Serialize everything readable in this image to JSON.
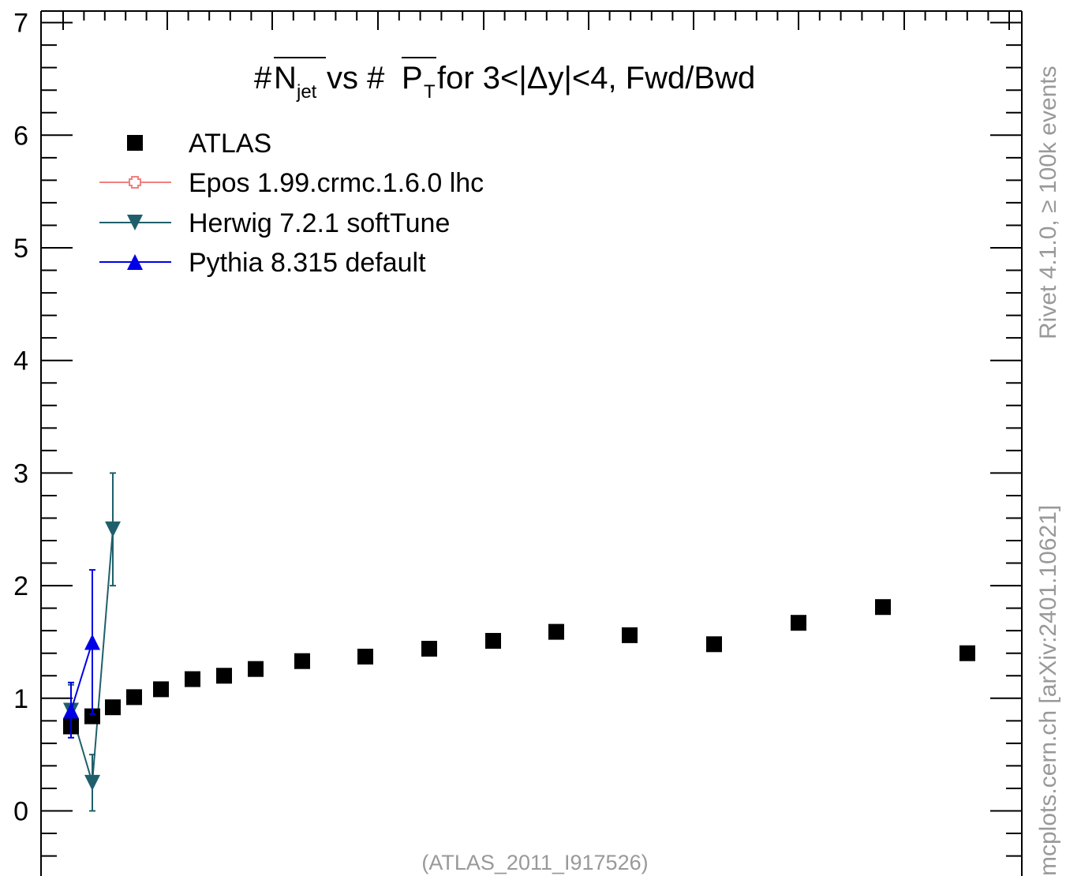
{
  "chart_data": {
    "type": "scatter",
    "title_parts": {
      "hash1": "#",
      "n": "N",
      "n_sub": "jet",
      "mid": " vs #",
      "p": "P",
      "p_sub": "T",
      "rest": " for 3<|Δy|<4, Fwd/Bwd"
    },
    "ylim": [
      -0.55,
      7
    ],
    "yticks": [
      0,
      1,
      2,
      3,
      4,
      5,
      6,
      7
    ],
    "series": [
      {
        "name": "ATLAS",
        "marker": "square",
        "color": "#000000",
        "points": [
          {
            "x": 1,
            "y": 0.75
          },
          {
            "x": 2,
            "y": 0.84
          },
          {
            "x": 3,
            "y": 0.92
          },
          {
            "x": 4,
            "y": 1.01
          },
          {
            "x": 5,
            "y": 1.08
          },
          {
            "x": 6,
            "y": 1.17
          },
          {
            "x": 7,
            "y": 1.2
          },
          {
            "x": 8,
            "y": 1.26
          },
          {
            "x": 9,
            "y": 1.33
          },
          {
            "x": 10,
            "y": 1.37
          },
          {
            "x": 11,
            "y": 1.44
          },
          {
            "x": 12,
            "y": 1.51
          },
          {
            "x": 13,
            "y": 1.59
          },
          {
            "x": 14,
            "y": 1.56
          },
          {
            "x": 15,
            "y": 1.48
          },
          {
            "x": 16,
            "y": 1.67
          },
          {
            "x": 17,
            "y": 1.81
          },
          {
            "x": 18,
            "y": 1.4
          }
        ]
      },
      {
        "name": "Epos 1.99.crmc.1.6.0 lhc",
        "marker": "open-cross",
        "color": "#f08080",
        "points": []
      },
      {
        "name": "Herwig 7.2.1 softTune",
        "marker": "triangle-down",
        "color": "#1f5f6b",
        "points": [
          {
            "x": 1,
            "y": 0.89,
            "err_low": 0.69,
            "err_high": 1.12
          },
          {
            "x": 2,
            "y": 0.25,
            "err_low": 0.0,
            "err_high": 0.5
          },
          {
            "x": 3,
            "y": 2.5,
            "err_low": 2.0,
            "err_high": 3.0
          }
        ]
      },
      {
        "name": "Pythia 8.315 default",
        "marker": "triangle-up",
        "color": "#0000e6",
        "points": [
          {
            "x": 1,
            "y": 0.89,
            "err_low": 0.65,
            "err_high": 1.14
          },
          {
            "x": 2,
            "y": 1.5,
            "err_low": 0.86,
            "err_high": 2.14
          }
        ]
      }
    ],
    "legend_placement": "top-left",
    "grid": false
  },
  "side_labels": {
    "rivet": "Rivet 4.1.0, ≥ 100k events",
    "mcplots": "mcplots.cern.ch [arXiv:2401.10621]"
  },
  "footer": "(ATLAS_2011_I917526)"
}
